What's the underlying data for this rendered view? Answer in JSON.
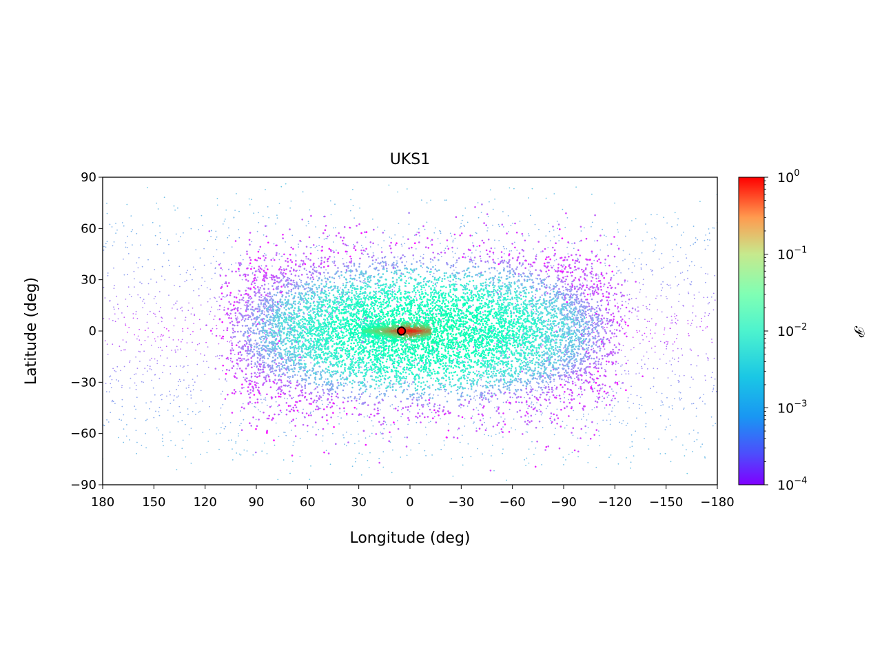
{
  "chart_data": {
    "type": "scatter",
    "title": "UKS1",
    "xlabel": "Longitude (deg)",
    "ylabel": "Latitude (deg)",
    "xlim": [
      180,
      -180
    ],
    "ylim": [
      -90,
      90
    ],
    "x_inverted": true,
    "xticks": [
      180,
      150,
      120,
      90,
      60,
      30,
      0,
      -30,
      -60,
      -90,
      -120,
      -150,
      -180
    ],
    "yticks": [
      90,
      60,
      30,
      0,
      -30,
      -60,
      -90
    ],
    "xtick_labels": [
      "180",
      "150",
      "120",
      "90",
      "60",
      "30",
      "0",
      "−30",
      "−60",
      "−90",
      "−120",
      "−150",
      "−180"
    ],
    "ytick_labels": [
      "90",
      "60",
      "30",
      "0",
      "−30",
      "−60",
      "−90"
    ],
    "grid": false,
    "colormap": "rainbow",
    "colorbar": {
      "label": "𝒫",
      "scale": "log",
      "range": [
        0.0001,
        1
      ],
      "ticks": [
        1,
        0.1,
        0.01,
        0.001,
        0.0001
      ],
      "tick_labels": [
        {
          "base": "10",
          "exp": "0"
        },
        {
          "base": "10",
          "exp": "−1"
        },
        {
          "base": "10",
          "exp": "−2"
        },
        {
          "base": "10",
          "exp": "−3"
        },
        {
          "base": "10",
          "exp": "−4"
        }
      ]
    },
    "density_description": {
      "core_region_longitude": [
        -110,
        95
      ],
      "core_region_latitude": [
        -40,
        40
      ],
      "peak_density_at": [
        0,
        0
      ],
      "peak_value": 1
    },
    "marker": {
      "longitude": 5,
      "latitude": 0,
      "face_color": "#ff0000",
      "edge_color": "#000000"
    }
  }
}
